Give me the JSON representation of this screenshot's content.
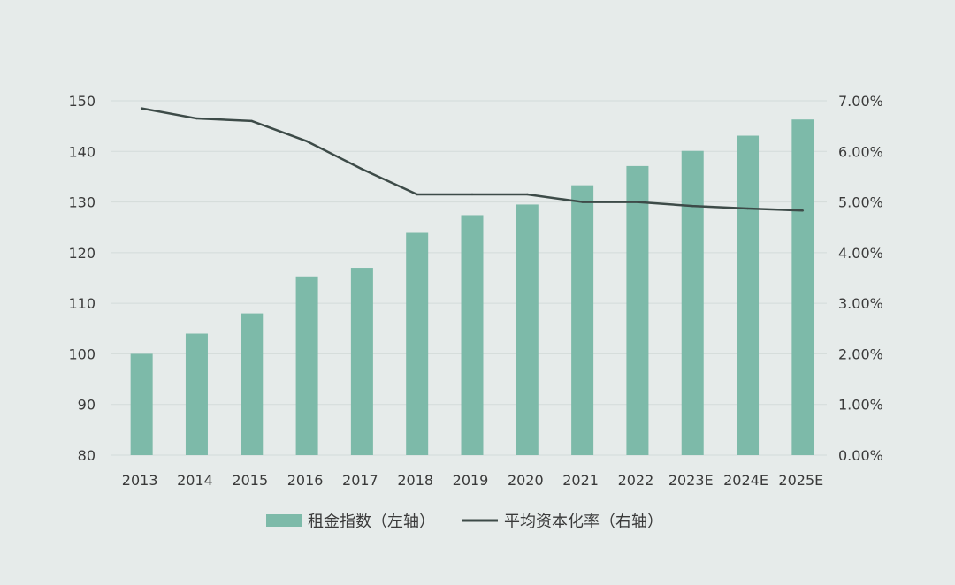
{
  "chart_data": {
    "type": "bar",
    "categories": [
      "2013",
      "2014",
      "2015",
      "2016",
      "2017",
      "2018",
      "2019",
      "2020",
      "2021",
      "2022",
      "2023E",
      "2024E",
      "2025E"
    ],
    "series": [
      {
        "name": "租金指数（左轴）",
        "type": "bar",
        "axis": "left",
        "color": "#7dbaa9",
        "values": [
          100,
          104,
          108,
          115.3,
          117,
          123.9,
          127.4,
          129.5,
          133.3,
          137.1,
          140.1,
          143.1,
          146.3
        ]
      },
      {
        "name": "平均资本化率（右轴）",
        "type": "line",
        "axis": "right",
        "color": "#3d4b48",
        "values": [
          6.85,
          6.65,
          6.6,
          6.2,
          5.65,
          5.15,
          5.15,
          5.15,
          5.0,
          5.0,
          4.92,
          4.87,
          4.83
        ]
      }
    ],
    "y_left": {
      "min": 80,
      "max": 150,
      "ticks": [
        "80",
        "90",
        "100",
        "110",
        "120",
        "130",
        "140",
        "150"
      ]
    },
    "y_right": {
      "min": 0,
      "max": 7,
      "ticks": [
        "0.00%",
        "1.00%",
        "2.00%",
        "3.00%",
        "4.00%",
        "5.00%",
        "6.00%",
        "7.00%"
      ]
    },
    "grid": true,
    "legend_position": "bottom",
    "title": "",
    "xlabel": "",
    "ylabel": ""
  },
  "legend": {
    "bar_label": "租金指数（左轴）",
    "line_label": "平均资本化率（右轴）"
  }
}
